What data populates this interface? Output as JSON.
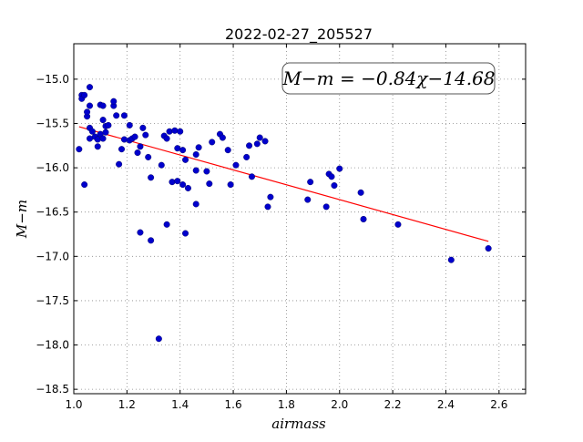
{
  "chart_data": {
    "type": "scatter",
    "title": "2022-02-27_205527",
    "xlabel": "airmass",
    "ylabel": "M−m",
    "xlim": [
      1.0,
      2.7
    ],
    "ylim": [
      -18.55,
      -14.6
    ],
    "y_inverted": true,
    "grid": true,
    "xticks": [
      1.0,
      1.2,
      1.4,
      1.6,
      1.8,
      2.0,
      2.2,
      2.4,
      2.6
    ],
    "xtick_labels": [
      "1.0",
      "1.2",
      "1.4",
      "1.6",
      "1.8",
      "2.0",
      "2.2",
      "2.4",
      "2.6"
    ],
    "yticks": [
      -15.0,
      -15.5,
      -16.0,
      -16.5,
      -17.0,
      -17.5,
      -18.0,
      -18.5
    ],
    "ytick_labels": [
      "−15.0",
      "−15.5",
      "−16.0",
      "−16.5",
      "−17.0",
      "−17.5",
      "−18.0",
      "−18.5"
    ],
    "annotation": "M−m = −0.84χ−14.68",
    "colors": {
      "points": "#0000cc",
      "fit": "#ff0000",
      "grid": "#888888"
    },
    "fit_line": {
      "slope": -0.84,
      "intercept": -14.68,
      "x_range": [
        1.02,
        2.56
      ]
    },
    "points": [
      [
        1.02,
        -15.79
      ],
      [
        1.03,
        -15.18
      ],
      [
        1.03,
        -15.22
      ],
      [
        1.04,
        -15.18
      ],
      [
        1.04,
        -16.19
      ],
      [
        1.05,
        -15.42
      ],
      [
        1.05,
        -15.37
      ],
      [
        1.06,
        -15.09
      ],
      [
        1.06,
        -15.3
      ],
      [
        1.06,
        -15.55
      ],
      [
        1.06,
        -15.67
      ],
      [
        1.07,
        -15.59
      ],
      [
        1.08,
        -15.65
      ],
      [
        1.09,
        -15.76
      ],
      [
        1.09,
        -15.68
      ],
      [
        1.1,
        -15.62
      ],
      [
        1.1,
        -15.29
      ],
      [
        1.11,
        -15.3
      ],
      [
        1.11,
        -15.46
      ],
      [
        1.11,
        -15.67
      ],
      [
        1.12,
        -15.6
      ],
      [
        1.12,
        -15.53
      ],
      [
        1.13,
        -15.52
      ],
      [
        1.15,
        -15.3
      ],
      [
        1.15,
        -15.25
      ],
      [
        1.16,
        -15.41
      ],
      [
        1.17,
        -15.96
      ],
      [
        1.18,
        -15.79
      ],
      [
        1.19,
        -15.41
      ],
      [
        1.19,
        -15.68
      ],
      [
        1.21,
        -15.52
      ],
      [
        1.21,
        -15.69
      ],
      [
        1.22,
        -15.67
      ],
      [
        1.23,
        -15.65
      ],
      [
        1.24,
        -15.83
      ],
      [
        1.25,
        -16.73
      ],
      [
        1.25,
        -15.76
      ],
      [
        1.26,
        -15.55
      ],
      [
        1.27,
        -15.63
      ],
      [
        1.28,
        -15.88
      ],
      [
        1.29,
        -16.82
      ],
      [
        1.29,
        -16.11
      ],
      [
        1.32,
        -17.93
      ],
      [
        1.33,
        -15.97
      ],
      [
        1.34,
        -15.64
      ],
      [
        1.35,
        -16.64
      ],
      [
        1.35,
        -15.67
      ],
      [
        1.36,
        -15.59
      ],
      [
        1.37,
        -16.16
      ],
      [
        1.38,
        -15.58
      ],
      [
        1.39,
        -15.78
      ],
      [
        1.39,
        -16.15
      ],
      [
        1.4,
        -15.59
      ],
      [
        1.41,
        -16.19
      ],
      [
        1.41,
        -15.8
      ],
      [
        1.42,
        -15.91
      ],
      [
        1.42,
        -16.74
      ],
      [
        1.43,
        -16.23
      ],
      [
        1.46,
        -15.85
      ],
      [
        1.46,
        -16.03
      ],
      [
        1.46,
        -16.41
      ],
      [
        1.47,
        -15.77
      ],
      [
        1.5,
        -16.04
      ],
      [
        1.51,
        -16.18
      ],
      [
        1.52,
        -15.71
      ],
      [
        1.55,
        -15.62
      ],
      [
        1.56,
        -15.66
      ],
      [
        1.58,
        -15.8
      ],
      [
        1.59,
        -16.19
      ],
      [
        1.61,
        -15.97
      ],
      [
        1.65,
        -15.88
      ],
      [
        1.66,
        -15.75
      ],
      [
        1.67,
        -16.1
      ],
      [
        1.69,
        -15.73
      ],
      [
        1.7,
        -15.66
      ],
      [
        1.72,
        -15.7
      ],
      [
        1.73,
        -16.44
      ],
      [
        1.74,
        -16.33
      ],
      [
        1.88,
        -16.36
      ],
      [
        1.89,
        -16.16
      ],
      [
        1.95,
        -16.44
      ],
      [
        1.96,
        -16.07
      ],
      [
        1.97,
        -16.1
      ],
      [
        1.98,
        -16.2
      ],
      [
        2.0,
        -16.01
      ],
      [
        2.08,
        -16.28
      ],
      [
        2.09,
        -16.58
      ],
      [
        2.22,
        -16.64
      ],
      [
        2.42,
        -17.04
      ],
      [
        2.56,
        -16.91
      ]
    ]
  }
}
